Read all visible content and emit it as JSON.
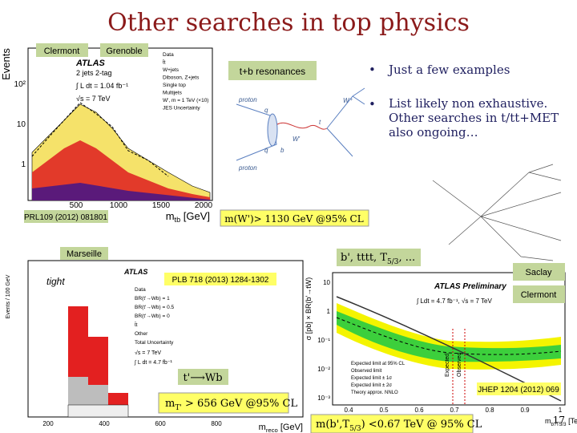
{
  "title": "Other searches in top physics",
  "labels": {
    "clermont_top": "Clermont",
    "grenoble": "Grenoble",
    "tb_resonances": "t+b resonances",
    "prl": "PRL109 (2012) 081801",
    "wprime_limit": "m(W')> 1130 GeV @95% CL",
    "marseille": "Marseille",
    "bprime": [
      "b',  tttt, T",
      "5/3",
      ", ..."
    ],
    "plb": "PLB 718 (2013) 1284-1302",
    "saclay": "Saclay",
    "clermont_bottom": "Clermont",
    "tprime_wb": "t'⟶Wb",
    "jhep": "JHEP 1204 (2012) 069",
    "tprime_limit": [
      "m",
      "T'",
      " > 656 GeV @95% CL"
    ],
    "bprime_limit": [
      "m(b',T",
      "5/3",
      ") <0.67 TeV @ 95% CL"
    ]
  },
  "bullets": [
    "Just a few examples",
    "List likely non exhaustive. Other searches in t/tt+MET also ongoing…"
  ],
  "page_number": "17",
  "plots": {
    "top_left": {
      "y_label": "Events",
      "x_label": [
        "m",
        "tb",
        " [GeV]"
      ],
      "x_ticks": [
        "500",
        "1000",
        "1500",
        "2000"
      ],
      "y_ticks": [
        "10²",
        "10",
        "1"
      ],
      "experiment": "ATLAS",
      "texts": [
        "2 jets 2-tag",
        "∫ L dt = 1.04 fb⁻¹",
        "√s = 7 TeV"
      ],
      "legend": [
        "Data",
        "t̄t",
        "W+jets",
        "Diboson, Z+jets",
        "Single top",
        "Multijets",
        "W', m = 1 TeV (×10)",
        "JES Uncertainty"
      ]
    },
    "feynman": [
      "proton",
      "proton",
      "W'",
      "t",
      "b",
      "q",
      "q̄",
      "W⁺"
    ],
    "bottom_left": {
      "y_label": "Events / 100 GeV",
      "x_label": [
        "m",
        "reco",
        " [GeV]"
      ],
      "x_ticks": [
        "200",
        "400",
        "600",
        "800"
      ],
      "tag": "tight",
      "experiment": "ATLAS",
      "legend": [
        "Data",
        "BR(t'→Wb) = 1",
        "BR(t'→Wb) = 0.5",
        "BR(t'→Wb) = 0",
        "t̄t",
        "Other",
        "Total Uncertainty"
      ],
      "texts": [
        "√s = 7 TeV",
        "∫ L dt = 4.7 fb⁻¹"
      ]
    },
    "bottom_right": {
      "y_label": "σ [pb] × BR(b'→tW)",
      "x_label": [
        "m",
        "b'/T5/3",
        " [TeV]"
      ],
      "x_ticks": [
        "0.4",
        "0.5",
        "0.6",
        "0.7",
        "0.8",
        "0.9",
        "1"
      ],
      "y_ticks": [
        "10",
        "1",
        "10⁻¹",
        "10⁻²",
        "10⁻³"
      ],
      "experiment": "ATLAS Preliminary",
      "texts": [
        "∫ Ldt = 4.7 fb⁻¹, √s = 7 TeV"
      ],
      "vertical": [
        "Expected",
        "Observed"
      ],
      "legend": [
        "Expected limit at 95% CL",
        "Observed limit",
        "Expected limit ± 1σ",
        "Expected limit ± 2σ",
        "Theory approx. NNLO"
      ]
    }
  }
}
